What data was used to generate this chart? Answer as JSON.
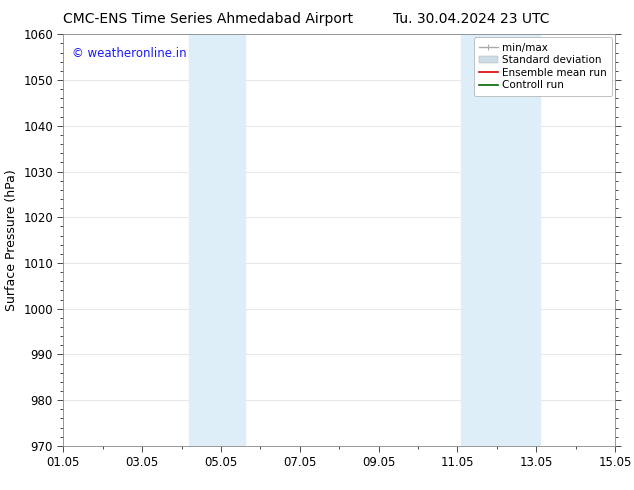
{
  "title_left": "CMC-ENS Time Series Ahmedabad Airport",
  "title_right": "Tu. 30.04.2024 23 UTC",
  "ylabel": "Surface Pressure (hPa)",
  "ylim": [
    970,
    1060
  ],
  "yticks": [
    970,
    980,
    990,
    1000,
    1010,
    1020,
    1030,
    1040,
    1050,
    1060
  ],
  "xlim": [
    0,
    14
  ],
  "xtick_positions": [
    0,
    2,
    4,
    6,
    8,
    10,
    12,
    14
  ],
  "xtick_labels": [
    "01.05",
    "03.05",
    "05.05",
    "07.05",
    "09.05",
    "11.05",
    "13.05",
    "15.05"
  ],
  "shaded_bands": [
    {
      "xmin": 3.2,
      "xmax": 4.6,
      "color": "#ddeef8"
    },
    {
      "xmin": 10.1,
      "xmax": 12.1,
      "color": "#ddeef8"
    }
  ],
  "watermark": "© weatheronline.in",
  "watermark_color": "#1a1aff",
  "background_color": "#ffffff",
  "plot_bg_color": "#ffffff",
  "legend_entries": [
    {
      "label": "min/max",
      "color": "#aaaaaa",
      "lw": 1.0
    },
    {
      "label": "Standard deviation",
      "color": "#ccdde8",
      "lw": 6
    },
    {
      "label": "Ensemble mean run",
      "color": "#dd0000",
      "lw": 1.2
    },
    {
      "label": "Controll run",
      "color": "#006600",
      "lw": 1.2
    }
  ],
  "grid_color": "#dddddd",
  "title_fontsize": 10,
  "tick_fontsize": 8.5,
  "ylabel_fontsize": 9,
  "watermark_fontsize": 8.5,
  "legend_fontsize": 7.5
}
